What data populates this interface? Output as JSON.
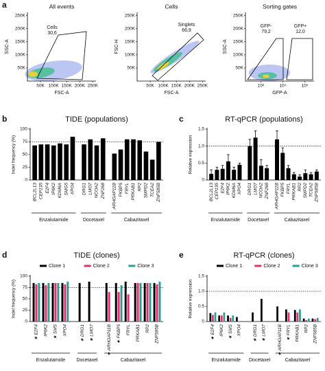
{
  "chart_data": [
    {
      "type": "flow",
      "panel": "a",
      "title": "All events",
      "xlabel": "FSC-A",
      "ylabel": "SSC-A",
      "xlim": [
        0,
        262144
      ],
      "ylim": [
        0,
        262144
      ],
      "xticks": [
        {
          "value": 50000,
          "label": "50K"
        },
        {
          "value": 100000,
          "label": "100K"
        },
        {
          "value": 150000,
          "label": "150K"
        },
        {
          "value": 200000,
          "label": "200K"
        },
        {
          "value": 250000,
          "label": "250K"
        }
      ],
      "yticks": [
        {
          "value": 50000,
          "label": "50K"
        },
        {
          "value": 100000,
          "label": "100K"
        },
        {
          "value": 150000,
          "label": "150K"
        },
        {
          "value": 200000,
          "label": "200K"
        },
        {
          "value": 250000,
          "label": "250K"
        }
      ],
      "gates": [
        {
          "name": "Cells",
          "value": "30,6"
        }
      ]
    },
    {
      "type": "flow",
      "title": "Cells",
      "xlabel": "FSC-A",
      "ylabel": "FSC-H",
      "xlim": [
        0,
        262144
      ],
      "ylim": [
        0,
        262144
      ],
      "xticks": [
        {
          "value": 50000,
          "label": "50K"
        },
        {
          "value": 100000,
          "label": "100K"
        },
        {
          "value": 150000,
          "label": "150K"
        },
        {
          "value": 200000,
          "label": "200K"
        },
        {
          "value": 250000,
          "label": "250K"
        }
      ],
      "yticks": [
        {
          "value": 50000,
          "label": "50K"
        },
        {
          "value": 100000,
          "label": "100K"
        },
        {
          "value": 150000,
          "label": "150K"
        },
        {
          "value": 200000,
          "label": "200K"
        },
        {
          "value": 250000,
          "label": "250K"
        }
      ],
      "gates": [
        {
          "name": "Singlets",
          "value": "66,9"
        }
      ]
    },
    {
      "type": "flow",
      "title": "Sorting gates",
      "xlabel": "GFP-A",
      "ylabel": "SSC-A",
      "xscale": "log",
      "xlim": [
        200,
        262144
      ],
      "ylim": [
        0,
        262144
      ],
      "xticks": [
        {
          "value": 1000,
          "label": "10³"
        },
        {
          "value": 10000,
          "label": "10⁴"
        },
        {
          "value": 100000,
          "label": "10⁵"
        }
      ],
      "yticks": [
        {
          "value": 50000,
          "label": "50K"
        },
        {
          "value": 100000,
          "label": "100K"
        },
        {
          "value": 150000,
          "label": "150K"
        },
        {
          "value": 200000,
          "label": "200K"
        },
        {
          "value": 250000,
          "label": "250K"
        }
      ],
      "gates": [
        {
          "name": "GFP-",
          "value": "79,2"
        },
        {
          "name": "GFP+",
          "value": "12,0"
        }
      ]
    },
    {
      "type": "bar",
      "panel": "b",
      "title": "TIDE (populations)",
      "ylabel": "Indel frequency (%)",
      "ylim": [
        0,
        100
      ],
      "yticks": [
        0,
        25,
        50,
        75,
        100
      ],
      "reference_line": 75,
      "color": "#000000",
      "groups": [
        "Enzalutamide",
        "Docetaxel",
        "Cabazitaxel"
      ],
      "categories": [
        [
          "BCL2L13",
          "CEP135",
          "E2F4",
          "IP6K2",
          "KDM6A",
          "SMG5",
          "XPO4"
        ],
        [
          "DRG1",
          "LMO7",
          "NCOA2",
          "ZNF268"
        ],
        [
          "ARHGAP11B",
          "FKBP5",
          "FRYL",
          "PRKAB1",
          "RP2",
          "SMPD2",
          "TCEA2",
          "ZNF585B"
        ]
      ],
      "values": [
        [
          68,
          70,
          70,
          68,
          72,
          70,
          85
        ],
        [
          70,
          80,
          68,
          82
        ],
        [
          52,
          60,
          80,
          80,
          78,
          56,
          40,
          75
        ]
      ]
    },
    {
      "type": "bar",
      "panel": "c",
      "title": "RT-qPCR (populations)",
      "ylabel": "Relative expression",
      "ylim": [
        0,
        1.5
      ],
      "yticks": [
        0,
        0.5,
        {
          "value": 1,
          "label": "1.0"
        },
        1.5
      ],
      "reference_line": 1,
      "color": "#000000",
      "groups": [
        "Enzalutamide",
        "Docetaxel",
        "Cabazitaxel"
      ],
      "categories": [
        [
          "BCL2L13",
          "CEP135",
          "E2F4",
          "IP6K2",
          "KDM6A",
          "XPO4"
        ],
        [
          "DRG1",
          "LMO7",
          "NCOA2",
          "ZNF268"
        ],
        [
          "ARHGAP11B",
          "FKBP5",
          "FRYL",
          "PRKAB1",
          "RP2",
          "SMPD2",
          "TCEA2",
          "ZNF585B"
        ]
      ],
      "values": [
        [
          0.18,
          0.3,
          0.33,
          0.55,
          0.3,
          0.45
        ],
        [
          1.0,
          1.25,
          0.42,
          0.35
        ],
        [
          1.2,
          0.8,
          0.35,
          0.17,
          0.1,
          0.2,
          0.17,
          0.25
        ]
      ],
      "errors": [
        [
          0.12,
          0.08,
          0.1,
          0.2,
          0.08,
          0.05
        ],
        [
          0.2,
          0.2,
          0.18,
          0.08
        ],
        [
          0.25,
          0.15,
          0.08,
          0.05,
          0.05,
          0.1,
          0.05,
          0.05
        ]
      ]
    },
    {
      "type": "bar",
      "panel": "d",
      "title": "TIDE (clones)",
      "ylabel": "Indel frequency (%)",
      "ylim": [
        0,
        100
      ],
      "yticks": [
        0,
        25,
        50,
        75,
        100
      ],
      "reference_line": 75,
      "groups": [
        "Enzalutamide",
        "Docetaxel",
        "Cabazitaxel"
      ],
      "categories": [
        [
          "★ E2F4",
          "IP6K2",
          "★ SMS",
          "XPO4"
        ],
        [
          "★ DRG1",
          "★ LMO7"
        ],
        [
          "★ ARHGAP11B",
          "★ FKBP5",
          "FRYL",
          "PRKAB1",
          "RP2",
          "ZNF585B"
        ]
      ],
      "series": [
        {
          "name": "Clone 1",
          "color": "#000000",
          "values": [
            [
              85,
              85,
              85,
              85
            ],
            [
              85,
              88
            ],
            [
              85,
              85,
              88,
              85,
              85,
              85
            ]
          ]
        },
        {
          "name": "Clone 2",
          "color": "#e0306e",
          "values": [
            [
              82,
              80,
              85,
              82
            ],
            [
              null,
              null
            ],
            [
              65,
              65,
              60,
              85,
              85,
              82
            ]
          ]
        },
        {
          "name": "Clone 3",
          "color": "#2a9d8f",
          "values": [
            [
              85,
              85,
              85,
              88
            ],
            [
              null,
              null
            ],
            [
              null,
              80,
              null,
              85,
              85,
              88
            ]
          ]
        }
      ]
    },
    {
      "type": "bar",
      "panel": "e",
      "title": "RT-qPCR (clones)",
      "ylabel": "Relative expression",
      "ylim": [
        0,
        1.5
      ],
      "yticks": [
        0,
        0.5,
        {
          "value": 1,
          "label": "1.0"
        },
        1.5
      ],
      "reference_line": 1,
      "groups": [
        "Enzalutamide",
        "Docetaxel",
        "Cabazitaxel"
      ],
      "categories": [
        [
          "★ E2F4",
          "IP6K2",
          "★ SMS",
          "XPO4"
        ],
        [
          "★ DRG1",
          "★ LMO7"
        ],
        [
          "★ ARHGAP11B",
          "★ FRYL",
          "PRKAB1",
          "RP2",
          "ZNF585B"
        ]
      ],
      "series": [
        {
          "name": "Clone 1",
          "color": "#000000",
          "values": [
            [
              0.28,
              0.2,
              0.2,
              0.15
            ],
            [
              0.3,
              0.75
            ],
            [
              0.5,
              0.4,
              0.38,
              0.1,
              0.1
            ]
          ]
        },
        {
          "name": "Clone 2",
          "color": "#e0306e",
          "values": [
            [
              0.22,
              0.2,
              0.12,
              null
            ],
            [
              null,
              null
            ],
            [
              null,
              0.3,
              0.3,
              0.05,
              0.08
            ]
          ]
        },
        {
          "name": "Clone 3",
          "color": "#2a9d8f",
          "values": [
            [
              0.3,
              0.3,
              0.2,
              null
            ],
            [
              null,
              null
            ],
            [
              null,
              null,
              0.4,
              0.1,
              0.12
            ]
          ]
        }
      ]
    }
  ]
}
